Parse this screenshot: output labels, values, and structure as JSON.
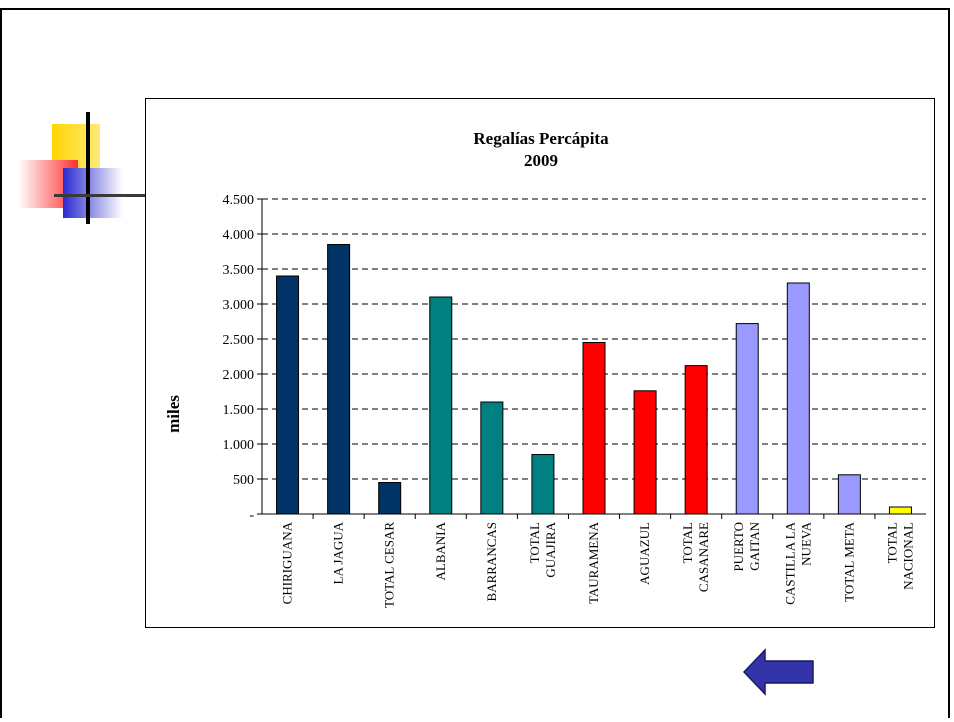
{
  "chart_data": {
    "type": "bar",
    "title_line1": "Regalías Percápita",
    "title_line2": "2009",
    "xlabel": "",
    "ylabel": "miles",
    "ylim": [
      0,
      4500
    ],
    "yticks": [
      {
        "value": 0,
        "label": "-"
      },
      {
        "value": 500,
        "label": "500"
      },
      {
        "value": 1000,
        "label": "1.000"
      },
      {
        "value": 1500,
        "label": "1.500"
      },
      {
        "value": 2000,
        "label": "2.000"
      },
      {
        "value": 2500,
        "label": "2.500"
      },
      {
        "value": 3000,
        "label": "3.000"
      },
      {
        "value": 3500,
        "label": "3.500"
      },
      {
        "value": 4000,
        "label": "4.000"
      },
      {
        "value": 4500,
        "label": "4.500"
      }
    ],
    "grid": "horizontal dashed",
    "categories": [
      [
        "CHIRIGUANA"
      ],
      [
        "LA JAGUA"
      ],
      [
        "TOTAL CESAR"
      ],
      [
        "ALBANIA"
      ],
      [
        "BARRANCAS"
      ],
      [
        "TOTAL",
        "GUAJIRA"
      ],
      [
        "TAURAMENA"
      ],
      [
        "AGUAZUL"
      ],
      [
        "TOTAL",
        "CASANARE"
      ],
      [
        "PUERTO",
        "GAITAN"
      ],
      [
        "CASTILLA LA",
        "NUEVA"
      ],
      [
        "TOTAL META"
      ],
      [
        "TOTAL",
        "NACIONAL"
      ]
    ],
    "values": [
      3400,
      3850,
      450,
      3100,
      1600,
      850,
      2450,
      1760,
      2120,
      2720,
      3300,
      560,
      100
    ],
    "colors": [
      "#003366",
      "#003366",
      "#003366",
      "#008080",
      "#008080",
      "#008080",
      "#ff0000",
      "#ff0000",
      "#ff0000",
      "#9999ff",
      "#9999ff",
      "#9999ff",
      "#ffff00"
    ]
  },
  "decor": {
    "back_arrow_icon": "left-arrow-icon",
    "arrow_color": "#3333aa"
  }
}
